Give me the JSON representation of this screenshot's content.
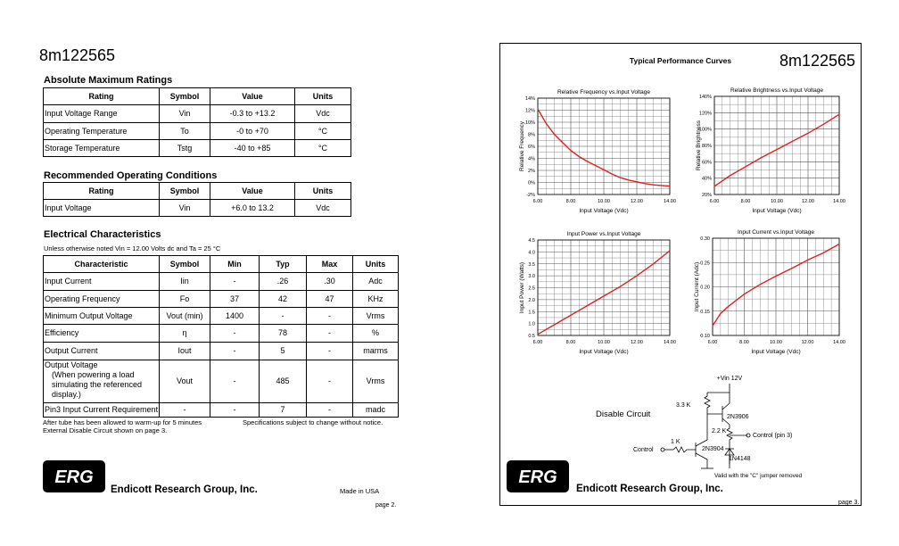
{
  "left": {
    "part": "8m122565",
    "amr": {
      "title": "Absolute Maximum Ratings",
      "headers": [
        "Rating",
        "Symbol",
        "Value",
        "Units"
      ],
      "rows": [
        [
          "Input Voltage Range",
          "Vin",
          "-0.3 to +13.2",
          "Vdc"
        ],
        [
          "Operating Temperature",
          "To",
          "-0 to +70",
          "°C"
        ],
        [
          "Storage Temperature",
          "Tstg",
          "-40 to +85",
          "°C"
        ]
      ]
    },
    "roc": {
      "title": "Recommended Operating Conditions",
      "headers": [
        "Rating",
        "Symbol",
        "Value",
        "Units"
      ],
      "rows": [
        [
          "Input Voltage",
          "Vin",
          "+6.0 to 13.2",
          "Vdc"
        ]
      ]
    },
    "ec": {
      "title": "Electrical Characteristics",
      "note": "Unless otherwise noted Vin = 12.00 Volts dc and Ta = 25 °C",
      "headers": [
        "Characteristic",
        "Symbol",
        "Min",
        "Typ",
        "Max",
        "Units"
      ],
      "rows": [
        [
          "Input Current",
          "Iin",
          "-",
          ".26",
          ".30",
          "Adc"
        ],
        [
          "Operating Frequency",
          "Fo",
          "37",
          "42",
          "47",
          "KHz"
        ],
        [
          "Minimum Output Voltage",
          "Vout (min)",
          "1400",
          "-",
          "-",
          "Vrms"
        ],
        [
          "Efficiency",
          "η",
          "-",
          "78",
          "-",
          "%"
        ],
        [
          "Output Current",
          "Iout",
          "-",
          "5",
          "-",
          "marms"
        ],
        [
          [
            "Output Voltage",
            "(When powering a load",
            "simulating the referenced",
            "display.)"
          ],
          "Vout",
          "-",
          "485",
          "-",
          "Vrms"
        ],
        [
          "Pin3 Input Current Requirement",
          "-",
          "-",
          "7",
          "-",
          "madc"
        ]
      ]
    },
    "footnotes": [
      "After tube has been allowed to warm-up for 5 minutes",
      "External Disable Circuit shown on page 3."
    ],
    "notice": "Specifications subject to change without notice.",
    "logo": "ERG",
    "company": "Endicott Research Group, Inc.",
    "made_in": "Made in USA",
    "page": "page 2."
  },
  "right": {
    "title": "Typical Performance Curves",
    "part": "8m122565",
    "circuit": {
      "title": "Disable Circuit",
      "vin": "+Vin 12V",
      "r1": "3.3 K",
      "q1": "2N3906",
      "r2": "2.2 K",
      "out": "Control (pin 3)",
      "r3": "1 K",
      "in": "Control",
      "q2": "2N3904",
      "d1": "1N4148",
      "note": "Valid with the \"C\" jumper removed"
    },
    "logo": "ERG",
    "company": "Endicott Research Group, Inc.",
    "page": "page 3."
  },
  "chart_data": [
    {
      "type": "line",
      "title": "Relative Frequency vs.Input Voltage",
      "x_label": "Input Voltage (Vdc)",
      "y_label": "Relative Frequency",
      "color": "#e02020",
      "x": [
        6,
        6.5,
        7,
        7.5,
        8,
        8.5,
        9,
        9.5,
        10,
        10.5,
        11,
        11.5,
        12,
        12.5,
        13,
        13.5,
        14
      ],
      "values": [
        12.2,
        9.8,
        8,
        6.6,
        5.3,
        4.3,
        3.5,
        2.8,
        2.1,
        1.4,
        0.8,
        0.4,
        0.1,
        -0.2,
        -0.4,
        -0.5,
        -0.6
      ],
      "xlim": [
        6,
        14
      ],
      "ylim": [
        -2,
        14
      ],
      "xticks": [
        {
          "value": 6,
          "label": "6.00"
        },
        {
          "value": 8,
          "label": "8.00"
        },
        {
          "value": 10,
          "label": "10.00"
        },
        {
          "value": 12,
          "label": "12.00"
        },
        {
          "value": 14,
          "label": "14.00"
        }
      ],
      "yticks": [
        {
          "value": -2,
          "label": "-2%"
        },
        {
          "value": 0,
          "label": "0%"
        },
        {
          "value": 2,
          "label": "2%"
        },
        {
          "value": 4,
          "label": "4%"
        },
        {
          "value": 6,
          "label": "6%"
        },
        {
          "value": 8,
          "label": "8%"
        },
        {
          "value": 10,
          "label": "10%"
        },
        {
          "value": 12,
          "label": "12%"
        },
        {
          "value": 14,
          "label": "14%"
        }
      ],
      "grid": true
    },
    {
      "type": "line",
      "title": "Relative Brightness vs.Input Voltage",
      "x_label": "Input Voltage (Vdc)",
      "y_label": "Relative Brightness",
      "color": "#e02020",
      "x": [
        6,
        7,
        8,
        9,
        10,
        11,
        12,
        13,
        14
      ],
      "values": [
        30,
        43,
        54,
        65,
        75,
        85,
        95,
        106,
        118
      ],
      "xlim": [
        6,
        14
      ],
      "ylim": [
        20,
        140
      ],
      "xticks": [
        {
          "value": 6,
          "label": "6.00"
        },
        {
          "value": 8,
          "label": "8.00"
        },
        {
          "value": 10,
          "label": "10.00"
        },
        {
          "value": 12,
          "label": "12.00"
        },
        {
          "value": 14,
          "label": "14.00"
        }
      ],
      "yticks": [
        {
          "value": 20,
          "label": "20%"
        },
        {
          "value": 40,
          "label": "40%"
        },
        {
          "value": 60,
          "label": "60%"
        },
        {
          "value": 80,
          "label": "80%"
        },
        {
          "value": 100,
          "label": "100%"
        },
        {
          "value": 120,
          "label": "120%"
        },
        {
          "value": 140,
          "label": "140%"
        }
      ],
      "grid": true
    },
    {
      "type": "line",
      "title": "Input Power vs.Input Voltage",
      "x_label": "Input Voltage (Vdc)",
      "y_label": "Input Power (Watts)",
      "color": "#e02020",
      "x": [
        6,
        7,
        8,
        9,
        10,
        11,
        12,
        13,
        14
      ],
      "values": [
        0.55,
        0.95,
        1.35,
        1.75,
        2.15,
        2.55,
        3.0,
        3.5,
        4.05
      ],
      "xlim": [
        6,
        14
      ],
      "ylim": [
        0.5,
        4.5
      ],
      "xticks": [
        {
          "value": 6,
          "label": "6.00"
        },
        {
          "value": 8,
          "label": "8.00"
        },
        {
          "value": 10,
          "label": "10.00"
        },
        {
          "value": 12,
          "label": "12.00"
        },
        {
          "value": 14,
          "label": "14.00"
        }
      ],
      "yticks": [
        0.5,
        {
          "value": 1,
          "label": "1.0"
        },
        1.5,
        {
          "value": 2,
          "label": "2.0"
        },
        2.5,
        {
          "value": 3,
          "label": "3.0"
        },
        3.5,
        {
          "value": 4,
          "label": "4.0"
        },
        4.5
      ],
      "grid": true
    },
    {
      "type": "line",
      "title": "Input Current vs.Input Voltage",
      "x_label": "Input Voltage (Vdc)",
      "y_label": "Input Current (Adc)",
      "color": "#e02020",
      "x": [
        6,
        6.5,
        7,
        8,
        9,
        10,
        11,
        12,
        13,
        14
      ],
      "values": [
        0.12,
        0.145,
        0.16,
        0.185,
        0.205,
        0.222,
        0.238,
        0.255,
        0.27,
        0.288
      ],
      "xlim": [
        6,
        14
      ],
      "ylim": [
        0.1,
        0.3
      ],
      "xticks": [
        {
          "value": 6,
          "label": "6.00"
        },
        {
          "value": 8,
          "label": "8.00"
        },
        {
          "value": 10,
          "label": "10.00"
        },
        {
          "value": 12,
          "label": "12.00"
        },
        {
          "value": 14,
          "label": "14.00"
        }
      ],
      "yticks": [
        {
          "value": 0.1,
          "label": "0.10"
        },
        {
          "value": 0.15,
          "label": "0.15"
        },
        {
          "value": 0.2,
          "label": "0.20"
        },
        {
          "value": 0.25,
          "label": "0.25"
        },
        {
          "value": 0.3,
          "label": "0.30"
        }
      ],
      "grid": true
    }
  ]
}
